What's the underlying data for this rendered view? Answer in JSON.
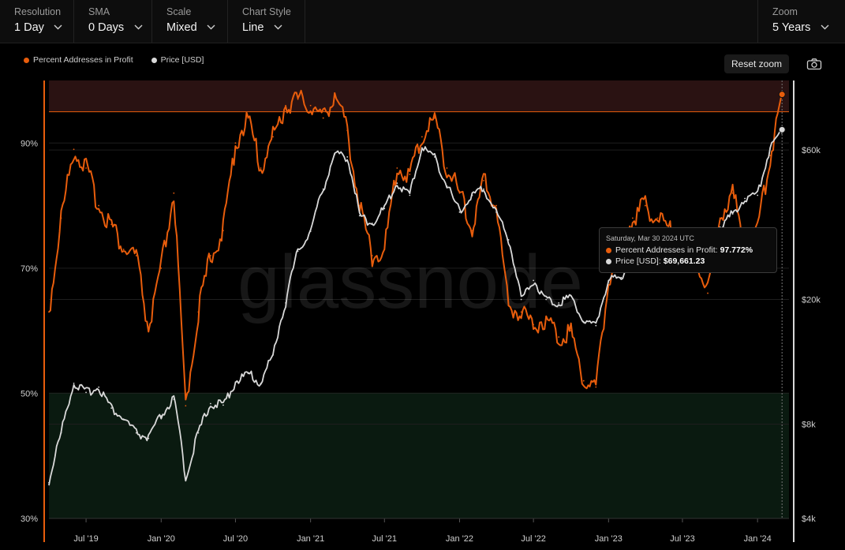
{
  "toolbar": {
    "resolution": {
      "label": "Resolution",
      "value": "1 Day"
    },
    "sma": {
      "label": "SMA",
      "value": "0 Days"
    },
    "scale": {
      "label": "Scale",
      "value": "Mixed"
    },
    "chart_style": {
      "label": "Chart Style",
      "value": "Line"
    },
    "zoom": {
      "label": "Zoom",
      "value": "5 Years"
    }
  },
  "reset_zoom_label": "Reset zoom",
  "watermark": "glassnode",
  "tooltip": {
    "date": "Saturday, Mar 30 2024 UTC",
    "profit_label": "Percent Addresses in Profit:",
    "profit_value": "97.772%",
    "price_label": "Price [USD]:",
    "price_value": "$69,661.23"
  },
  "colors": {
    "profit": "#e85d0c",
    "price": "#d9d9d9",
    "upper_band": "#2a1212",
    "lower_band": "#0a1a10",
    "accent": "#e85d0c"
  },
  "icons": {
    "chevron": "chevron-down-icon",
    "camera": "camera-icon"
  },
  "chart_data": {
    "type": "line",
    "x": [
      "2019-04",
      "2019-05",
      "2019-06",
      "2019-07",
      "2019-08",
      "2019-09",
      "2019-10",
      "2019-11",
      "2019-12",
      "2020-01",
      "2020-02",
      "2020-03",
      "2020-04",
      "2020-05",
      "2020-06",
      "2020-07",
      "2020-08",
      "2020-09",
      "2020-10",
      "2020-11",
      "2020-12",
      "2021-01",
      "2021-02",
      "2021-03",
      "2021-04",
      "2021-05",
      "2021-06",
      "2021-07",
      "2021-08",
      "2021-09",
      "2021-10",
      "2021-11",
      "2021-12",
      "2022-01",
      "2022-02",
      "2022-03",
      "2022-04",
      "2022-05",
      "2022-06",
      "2022-07",
      "2022-08",
      "2022-09",
      "2022-10",
      "2022-11",
      "2022-12",
      "2023-01",
      "2023-02",
      "2023-03",
      "2023-04",
      "2023-05",
      "2023-06",
      "2023-07",
      "2023-08",
      "2023-09",
      "2023-10",
      "2023-11",
      "2023-12",
      "2024-01",
      "2024-02",
      "2024-03"
    ],
    "series": [
      {
        "name": "Percent Addresses in Profit",
        "axis": "left",
        "unit": "%",
        "values": [
          63,
          78,
          89,
          86,
          80,
          77,
          73,
          72,
          60,
          70,
          82,
          48,
          63,
          72,
          76,
          90,
          94,
          86,
          91,
          96,
          97,
          96,
          94,
          98,
          92,
          80,
          72,
          73,
          86,
          85,
          91,
          94,
          86,
          82,
          76,
          84,
          80,
          64,
          63,
          61,
          62,
          59,
          60,
          52,
          51,
          68,
          75,
          78,
          80,
          78,
          76,
          74,
          72,
          66,
          78,
          82,
          74,
          76,
          88,
          97.772
        ]
      },
      {
        "name": "Price [USD]",
        "axis": "right",
        "unit": "USD",
        "values": [
          5200,
          7500,
          10800,
          10100,
          10500,
          9000,
          8300,
          7500,
          7200,
          8500,
          9600,
          5300,
          7500,
          9300,
          9200,
          10900,
          11600,
          10800,
          13300,
          19500,
          28500,
          33000,
          45000,
          58000,
          57000,
          37000,
          35000,
          39000,
          47000,
          43000,
          61000,
          57000,
          46000,
          38000,
          43000,
          45000,
          38000,
          31000,
          20000,
          23000,
          20000,
          19500,
          20500,
          17000,
          16500,
          23000,
          23500,
          28000,
          29500,
          27000,
          30000,
          29000,
          26000,
          27000,
          34000,
          37500,
          42000,
          43000,
          61000,
          69661.23
        ]
      }
    ],
    "left_axis": {
      "type": "linear",
      "ticks": [
        "30%",
        "50%",
        "70%",
        "90%"
      ],
      "range": [
        30,
        100
      ]
    },
    "right_axis": {
      "type": "log",
      "ticks": [
        "$4k",
        "$8k",
        "$20k",
        "$60k"
      ],
      "range": [
        4000,
        100000
      ]
    },
    "x_ticks": [
      "Jul '19",
      "Jan '20",
      "Jul '20",
      "Jan '21",
      "Jul '21",
      "Jan '22",
      "Jul '22",
      "Jan '23",
      "Jul '23",
      "Jan '24"
    ],
    "x_tick_dates": [
      "2019-07",
      "2020-01",
      "2020-07",
      "2021-01",
      "2021-07",
      "2022-01",
      "2022-07",
      "2023-01",
      "2023-07",
      "2024-01"
    ],
    "bands": [
      {
        "from": 95,
        "to": 100,
        "tone": "upper"
      },
      {
        "from": 30,
        "to": 50,
        "tone": "lower"
      }
    ],
    "legend_placement": "top-left",
    "grid": true
  }
}
